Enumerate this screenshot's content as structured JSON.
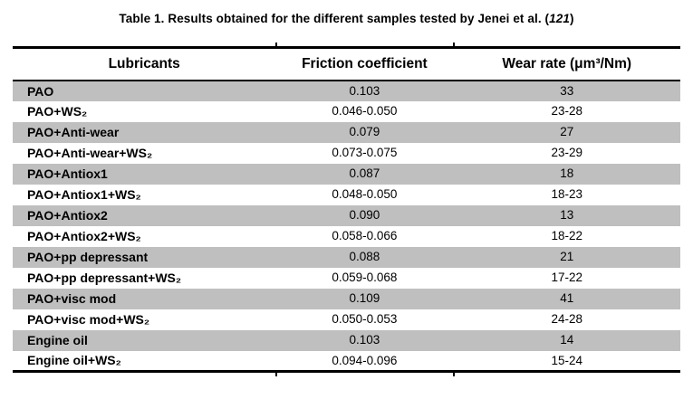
{
  "caption": {
    "prefix": "Table 1. Results obtained for the different samples tested by Jenei et al. (",
    "citation": "121",
    "suffix": ")"
  },
  "table": {
    "stripe_color": "#bfbfbf",
    "border_color": "#000000",
    "columns": [
      "Lubricants",
      "Friction coefficient",
      "Wear rate (μm³/Nm)"
    ],
    "rows": [
      {
        "lubricant": "PAO",
        "friction": "0.103",
        "wear": "33"
      },
      {
        "lubricant": "PAO+WS₂",
        "friction": "0.046-0.050",
        "wear": "23-28"
      },
      {
        "lubricant": "PAO+Anti-wear",
        "friction": "0.079",
        "wear": "27"
      },
      {
        "lubricant": "PAO+Anti-wear+WS₂",
        "friction": "0.073-0.075",
        "wear": "23-29"
      },
      {
        "lubricant": "PAO+Antiox1",
        "friction": "0.087",
        "wear": "18"
      },
      {
        "lubricant": "PAO+Antiox1+WS₂",
        "friction": "0.048-0.050",
        "wear": "18-23"
      },
      {
        "lubricant": "PAO+Antiox2",
        "friction": "0.090",
        "wear": "13"
      },
      {
        "lubricant": "PAO+Antiox2+WS₂",
        "friction": "0.058-0.066",
        "wear": "18-22"
      },
      {
        "lubricant": "PAO+pp depressant",
        "friction": "0.088",
        "wear": "21"
      },
      {
        "lubricant": "PAO+pp depressant+WS₂",
        "friction": "0.059-0.068",
        "wear": "17-22"
      },
      {
        "lubricant": "PAO+visc mod",
        "friction": "0.109",
        "wear": "41"
      },
      {
        "lubricant": "PAO+visc mod+WS₂",
        "friction": "0.050-0.053",
        "wear": "24-28"
      },
      {
        "lubricant": "Engine oil",
        "friction": "0.103",
        "wear": "14"
      },
      {
        "lubricant": "Engine oil+WS₂",
        "friction": "0.094-0.096",
        "wear": "15-24"
      }
    ]
  }
}
